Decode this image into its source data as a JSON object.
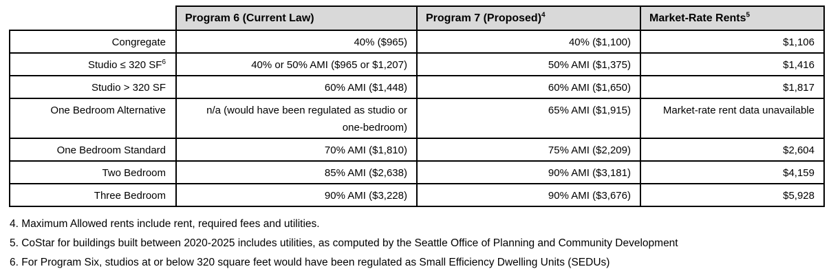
{
  "table": {
    "header_bg": "#d9d9d9",
    "border_color": "#000000",
    "header": [
      {
        "label": "",
        "sup": ""
      },
      {
        "label": "Program 6 (Current Law)",
        "sup": ""
      },
      {
        "label": "Program 7 (Proposed)",
        "sup": "4"
      },
      {
        "label": "Market-Rate Rents",
        "sup": "5"
      }
    ],
    "rows": [
      {
        "label": "Congregate",
        "sup": "",
        "program6": "40% ($965)",
        "program7": "40% ($1,100)",
        "market_rate": "$1,106"
      },
      {
        "label": "Studio ≤ 320 SF",
        "sup": "6",
        "program6": "40% or 50% AMI ($965 or $1,207)",
        "program7": "50% AMI ($1,375)",
        "market_rate": "$1,416"
      },
      {
        "label": "Studio > 320 SF",
        "sup": "",
        "program6": "60% AMI ($1,448)",
        "program7": "60% AMI ($1,650)",
        "market_rate": "$1,817"
      },
      {
        "label": "One Bedroom Alternative",
        "sup": "",
        "program6": "n/a (would have been regulated as studio or one-bedroom)",
        "program7": "65% AMI ($1,915)",
        "market_rate": "Market-rate rent data unavailable"
      },
      {
        "label": "One Bedroom Standard",
        "sup": "",
        "program6": "70% AMI ($1,810)",
        "program7": "75% AMI ($2,209)",
        "market_rate": "$2,604"
      },
      {
        "label": "Two Bedroom",
        "sup": "",
        "program6": "85% AMI ($2,638)",
        "program7": "90% AMI ($3,181)",
        "market_rate": "$4,159"
      },
      {
        "label": "Three Bedroom",
        "sup": "",
        "program6": "90% AMI ($3,228)",
        "program7": "90% AMI ($3,676)",
        "market_rate": "$5,928"
      }
    ]
  },
  "footnotes": [
    "4. Maximum Allowed rents include rent, required fees and utilities.",
    "5. CoStar for buildings built between 2020-2025 includes utilities, as computed by the Seattle Office of Planning and Community Development",
    "6. For Program Six, studios at or below 320 square feet would have been regulated as Small Efficiency Dwelling Units (SEDUs)"
  ]
}
